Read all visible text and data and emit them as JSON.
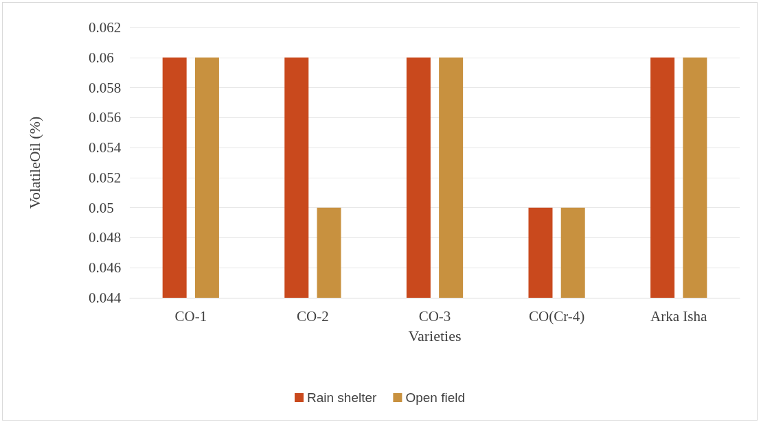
{
  "chart_data": {
    "type": "bar",
    "xlabel": "Varieties",
    "ylabel": "VolatileOil (%)",
    "categories": [
      "CO-1",
      "CO-2",
      "CO-3",
      "CO(Cr-4)",
      "Arka Isha"
    ],
    "series": [
      {
        "name": "Rain shelter",
        "color": "#c9491d",
        "values": [
          0.06,
          0.06,
          0.06,
          0.05,
          0.06
        ]
      },
      {
        "name": "Open field",
        "color": "#c8913f",
        "values": [
          0.06,
          0.05,
          0.06,
          0.05,
          0.06
        ]
      }
    ],
    "ylim": [
      0.044,
      0.062
    ],
    "yticks": [
      0.044,
      0.046,
      0.048,
      0.05,
      0.052,
      0.054,
      0.056,
      0.058,
      0.06,
      0.062
    ],
    "grid": "y",
    "legend": "bottom"
  }
}
